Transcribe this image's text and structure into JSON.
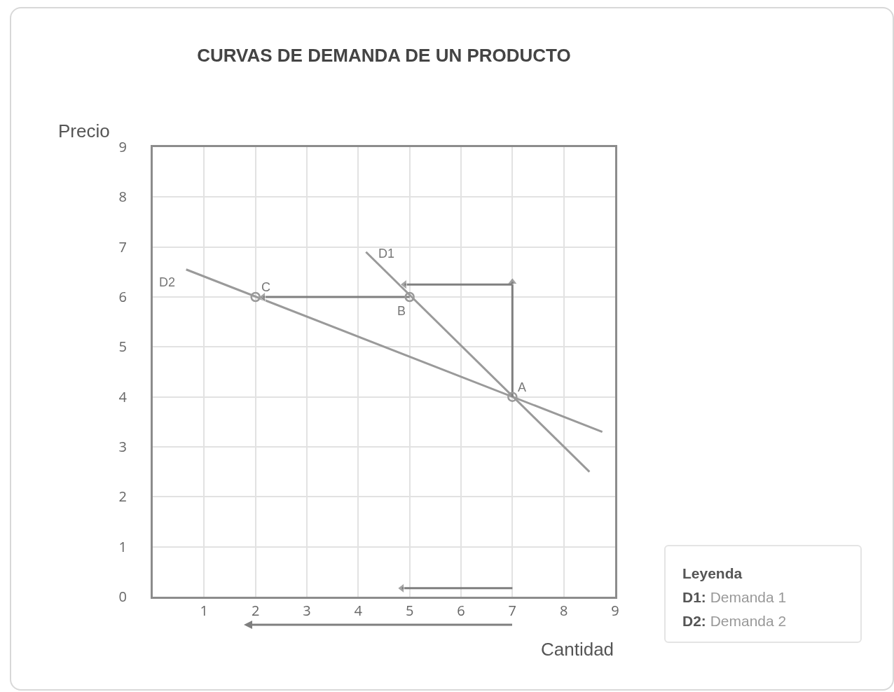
{
  "chart_data": {
    "type": "line",
    "title": "CURVAS DE DEMANDA DE UN PRODUCTO",
    "xlabel": "Cantidad",
    "ylabel": "Precio",
    "legend_title": "Leyenda",
    "xlim": [
      0,
      9
    ],
    "xticks": [
      {
        "value": 0,
        "label": null
      },
      1,
      2,
      3,
      4,
      5,
      6,
      7,
      8,
      9
    ],
    "ylim": [
      0,
      9
    ],
    "yticks": [
      0,
      1,
      2,
      3,
      4,
      5,
      6,
      7,
      8,
      9
    ],
    "grid": true,
    "series": [
      {
        "name": "D1",
        "color": "#9a9a9a",
        "x": [
          4.15,
          8.5
        ],
        "values": [
          6.9,
          2.5
        ],
        "marker": "none"
      },
      {
        "name": "D2",
        "color": "#9a9a9a",
        "x": [
          0.65,
          8.75
        ],
        "values": [
          6.55,
          3.3
        ],
        "marker": "none"
      },
      {
        "color": "#7f7f7f",
        "x": [
          7,
          7
        ],
        "values": [
          4,
          6.3
        ],
        "marker": "triangle"
      },
      {
        "color": "#7f7f7f",
        "x": [
          7,
          4.9
        ],
        "values": [
          6.25,
          6.25
        ],
        "marker": "triangle"
      },
      {
        "color": "#7f7f7f",
        "x": [
          5,
          2.15
        ],
        "values": [
          6,
          6
        ],
        "marker": "triangle"
      },
      {
        "color": "#7f7f7f",
        "x": [
          7,
          4.85
        ],
        "values": [
          0.17,
          0.17
        ],
        "marker": "triangle"
      },
      {
        "type": "scatter",
        "color": "#9a9a9a",
        "x": [
          7,
          5,
          2
        ],
        "values": [
          4,
          6,
          6
        ],
        "marker": "circle"
      }
    ],
    "annotations": [
      {
        "text": "A",
        "x": 7,
        "y": 4
      },
      {
        "text": "B",
        "x": 5,
        "y": 6
      },
      {
        "text": "C",
        "x": 2,
        "y": 6
      },
      "D1: Demanda 1",
      "D2: Demanda 2"
    ]
  }
}
